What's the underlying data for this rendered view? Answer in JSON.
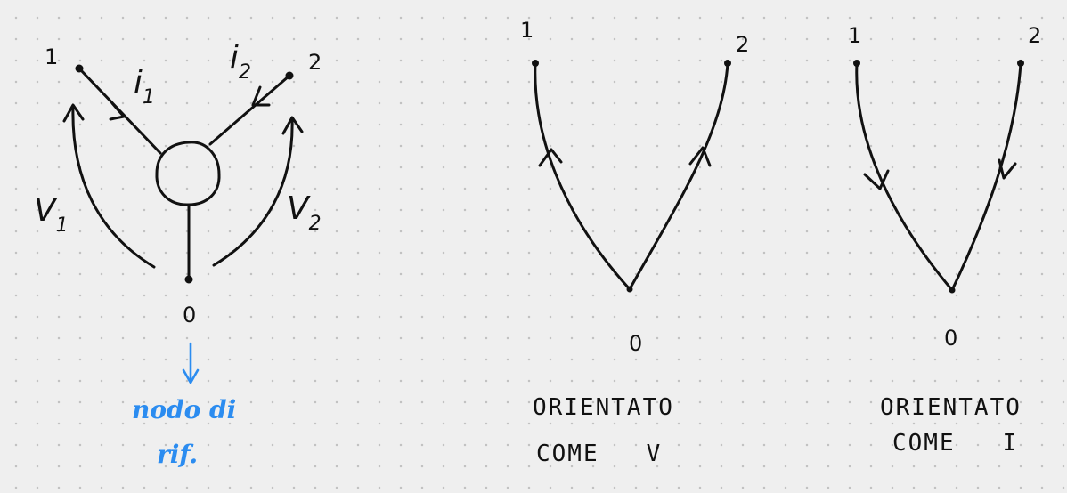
{
  "left_diagram": {
    "node_1": "1",
    "node_2": "2",
    "node_0": "0",
    "current_1": {
      "base": "i",
      "sub": "1"
    },
    "current_2": {
      "base": "i",
      "sub": "2"
    },
    "voltage_1": {
      "base": "V",
      "sub": "1"
    },
    "voltage_2": {
      "base": "V",
      "sub": "2"
    },
    "note_line_1": "nodo di",
    "note_line_2": "rif.",
    "note_color": "#2b8cf0"
  },
  "middle_diagram": {
    "node_1": "1",
    "node_2": "2",
    "node_0": "0",
    "caption_line_1": "ORIENTATO",
    "caption_line_2": "COME   V"
  },
  "right_diagram": {
    "node_1": "1",
    "node_2": "2",
    "node_0": "0",
    "caption_line_1": "ORIENTATO",
    "caption_line_2": "COME   I"
  }
}
